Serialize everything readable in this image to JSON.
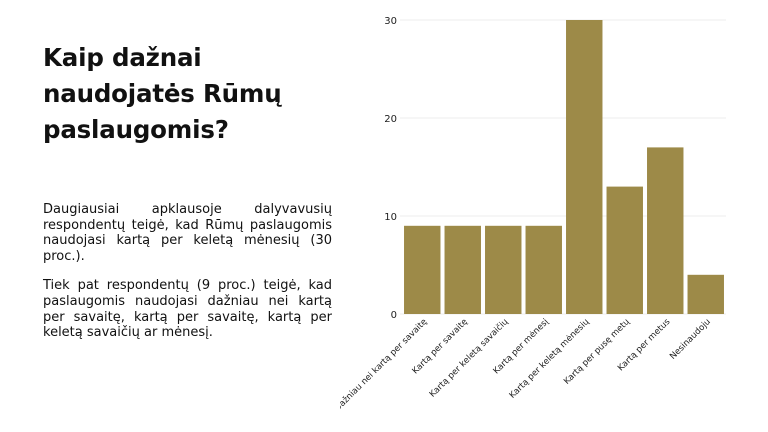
{
  "title": "Kaip dažnai naudojatės Rūmų paslaugomis?",
  "paragraphs": [
    "Daugiausiai apklausoje dalyvavusių respondentų teigė, kad Rūmų paslaugomis naudojasi kartą per keletą mėnesių (30 proc.).",
    "Tiek pat respondentų (9 proc.) teigė, kad paslaugomis naudojasi dažniau nei kartą per savaitę, kartą per savaitę, kartą per keletą savaičių ar mėnesį."
  ],
  "colors": {
    "bar": "#9d8a48",
    "grid": "#ececec",
    "text": "#111111"
  },
  "chart_data": {
    "type": "bar",
    "categories": [
      "Dažniau nei kartą per savaitę",
      "Kartą per savaitę",
      "Kartą per keletą savaičių",
      "Kartą per mėnesį",
      "Kartą per keletą mėnesių",
      "Kartą per pusę metų",
      "Kartą per metus",
      "Nesinaudoju"
    ],
    "values": [
      9,
      9,
      9,
      9,
      30,
      13,
      17,
      4
    ],
    "ylim": [
      0,
      30
    ],
    "yticks": [
      0,
      10,
      20,
      30
    ],
    "grid": true,
    "legend": "none"
  }
}
